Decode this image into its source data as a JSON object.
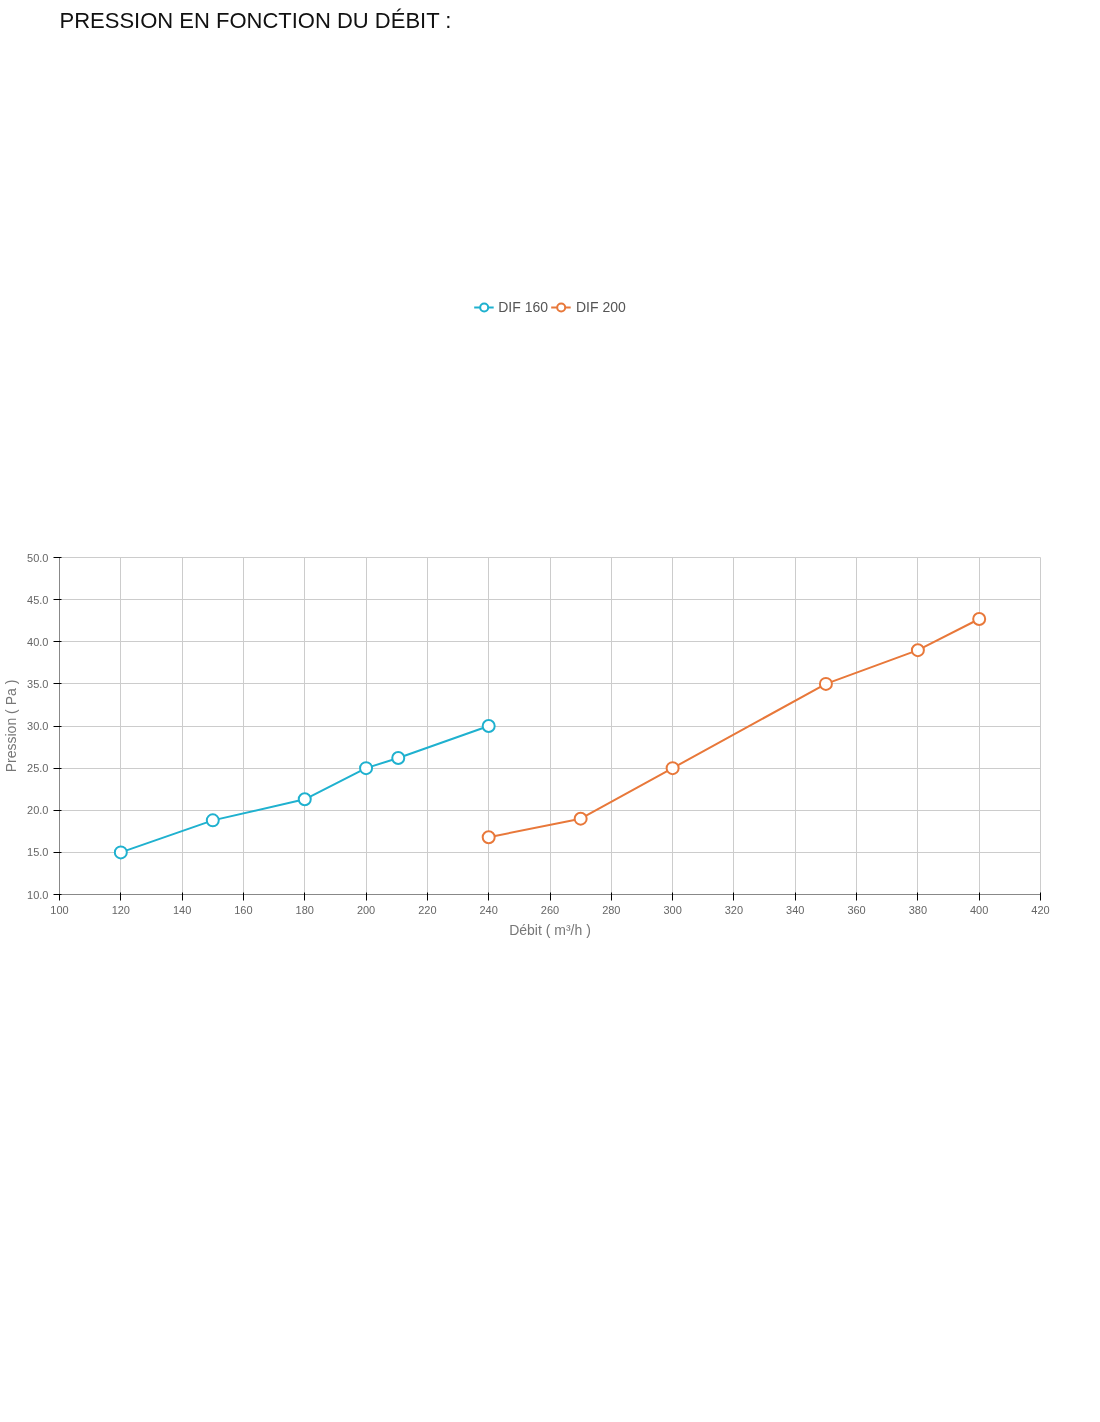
{
  "chart_data": {
    "type": "line",
    "title": "PRESSION EN FONCTION DU DÉBIT :",
    "xlabel": "Débit ( m³/h )",
    "ylabel": "Pression ( Pa )",
    "series": [
      {
        "name": "DIF 160",
        "color": "#1fb1cf",
        "x": [
          120,
          150,
          180,
          200,
          210.5,
          240
        ],
        "values": [
          15,
          18.8,
          21.3,
          25,
          26.2,
          30
        ]
      },
      {
        "name": "DIF 200",
        "color": "#e8783a",
        "x": [
          240,
          270,
          300,
          350,
          380,
          400
        ],
        "values": [
          16.8,
          19,
          25,
          35,
          39,
          42.7
        ]
      }
    ],
    "xlim": [
      100,
      420
    ],
    "xticks": [
      100,
      120,
      140,
      160,
      180,
      200,
      220,
      240,
      260,
      280,
      300,
      320,
      340,
      360,
      380,
      400,
      420
    ],
    "ylim": [
      10,
      50
    ],
    "yticks": [
      {
        "value": 10,
        "label": "10.0"
      },
      {
        "value": 15,
        "label": "15.0"
      },
      {
        "value": 20,
        "label": "20.0"
      },
      {
        "value": 25,
        "label": "25.0"
      },
      {
        "value": 30,
        "label": "30.0"
      },
      {
        "value": 35,
        "label": "35.0"
      },
      {
        "value": 40,
        "label": "40.0"
      },
      {
        "value": 45,
        "label": "45.0"
      },
      {
        "value": 50,
        "label": "50.0"
      }
    ],
    "grid": true,
    "legend": "top",
    "marker": "circle",
    "line_style": "solid"
  }
}
